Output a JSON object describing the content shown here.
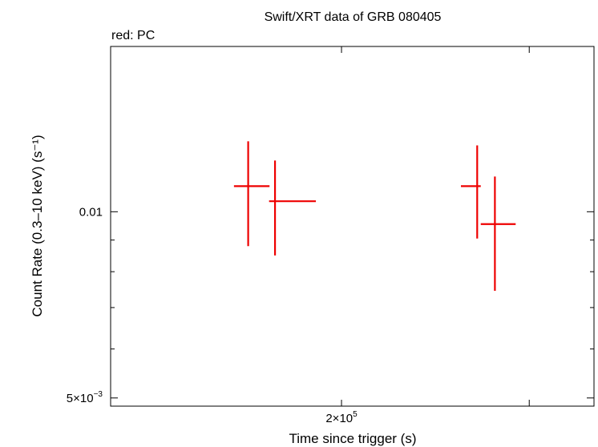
{
  "chart_data": {
    "type": "scatter",
    "title": "Swift/XRT data of GRB 080405",
    "subtitle": "red: PC",
    "xlabel": "Time since trigger (s)",
    "ylabel": "Count Rate (0.3–10 keV) (s⁻¹)",
    "x_scale": "log",
    "y_scale": "log",
    "xlim": [
      152000,
      270000
    ],
    "ylim": [
      0.00485,
      0.0185
    ],
    "x_tick_labels": [
      {
        "value": 200000,
        "mantissa": "2×10",
        "exponent": "5"
      }
    ],
    "y_tick_labels": [
      {
        "value": 0.01,
        "text": "0.01"
      },
      {
        "value": 0.005,
        "mantissa": "5×10",
        "exponent": "−3"
      }
    ],
    "x_minor_ticks": [
      200000,
      250000
    ],
    "y_minor_ticks": [
      0.005,
      0.006,
      0.007,
      0.008,
      0.009,
      0.01
    ],
    "series": [
      {
        "color": "#ee0000",
        "points": [
          {
            "x": 179000,
            "y": 0.011,
            "xerr": [
              176000,
              183600
            ],
            "yerr": [
              0.0088,
              0.013
            ]
          },
          {
            "x": 184800,
            "y": 0.0104,
            "xerr": [
              183500,
              194000
            ],
            "yerr": [
              0.0085,
              0.0121
            ]
          },
          {
            "x": 235000,
            "y": 0.011,
            "xerr": [
              230500,
              236000
            ],
            "yerr": [
              0.00905,
              0.0128
            ]
          },
          {
            "x": 240000,
            "y": 0.00955,
            "xerr": [
              236000,
              246000
            ],
            "yerr": [
              0.00745,
              0.0114
            ]
          }
        ]
      }
    ]
  }
}
